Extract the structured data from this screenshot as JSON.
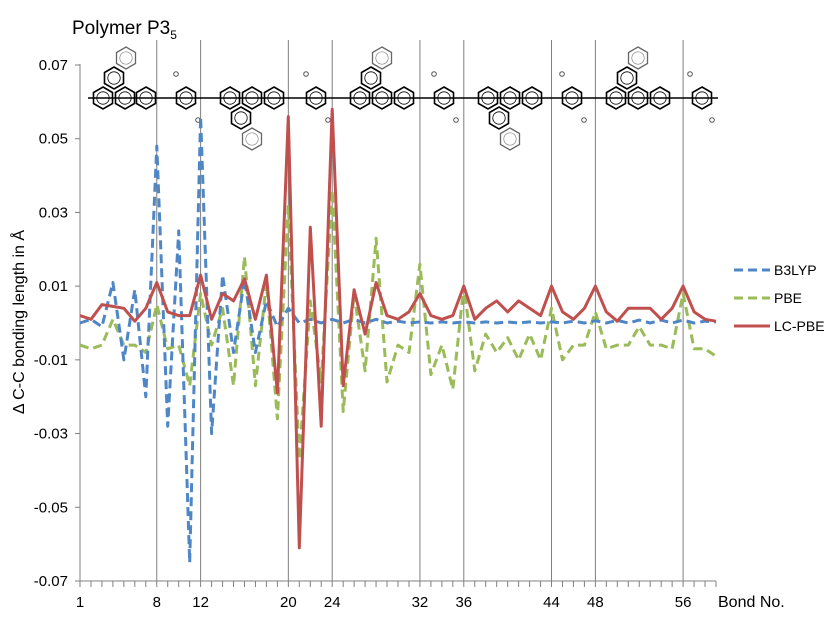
{
  "chart_data": {
    "type": "line",
    "title": "Polymer P3",
    "title_subscript": "5",
    "xlabel": "Bond No.",
    "ylabel": "Δ C-C bonding length in Å",
    "xlim": [
      1,
      59
    ],
    "ylim": [
      -0.07,
      0.07
    ],
    "y_ticks": [
      "0.07",
      "0.05",
      "0.03",
      "0.01",
      "-0.01",
      "-0.03",
      "-0.05",
      "-0.07"
    ],
    "y_tick_values": [
      0.07,
      0.05,
      0.03,
      0.01,
      -0.01,
      -0.03,
      -0.05,
      -0.07
    ],
    "x_tick_labels": [
      "1",
      "8",
      "12",
      "20",
      "24",
      "32",
      "36",
      "44",
      "48",
      "56"
    ],
    "x_tick_values": [
      1,
      8,
      12,
      20,
      24,
      32,
      36,
      44,
      48,
      56
    ],
    "vertical_reference_lines": [
      8,
      12,
      20,
      24,
      32,
      36,
      44,
      48,
      56
    ],
    "grid": false,
    "legend_position": "right",
    "x": [
      1,
      2,
      3,
      4,
      5,
      6,
      7,
      8,
      9,
      10,
      11,
      12,
      13,
      14,
      15,
      16,
      17,
      18,
      19,
      20,
      21,
      22,
      23,
      24,
      25,
      26,
      27,
      28,
      29,
      30,
      31,
      32,
      33,
      34,
      35,
      36,
      37,
      38,
      39,
      40,
      41,
      42,
      43,
      44,
      45,
      46,
      47,
      48,
      49,
      50,
      51,
      52,
      53,
      54,
      55,
      56,
      57,
      58,
      59
    ],
    "series": [
      {
        "name": "B3LYP",
        "color": "#4f86c6",
        "style": "dashed",
        "values": [
          0.0,
          0.001,
          -0.001,
          0.011,
          -0.01,
          0.009,
          -0.02,
          0.048,
          -0.028,
          0.025,
          -0.065,
          0.056,
          -0.03,
          0.013,
          -0.008,
          0.012,
          -0.008,
          0.006,
          -0.001,
          0.004,
          0.0,
          0.001,
          0.0,
          0.001,
          0.0,
          0.001,
          0.0,
          0.001,
          0.0,
          0.0005,
          0.0,
          0.0003,
          0.0,
          0.0003,
          0.0,
          0.0003,
          0.0,
          0.0003,
          0.0,
          0.0003,
          0.0,
          0.0003,
          0.0,
          0.0003,
          0.0,
          0.0005,
          0.0,
          0.0006,
          0.0,
          0.0007,
          0.0,
          0.0008,
          0.0,
          0.0008,
          0.0,
          0.0008,
          0.0,
          0.0005,
          0.0003
        ]
      },
      {
        "name": "PBE",
        "color": "#9bbb59",
        "style": "dashed",
        "values": [
          -0.006,
          -0.007,
          -0.006,
          0.001,
          -0.006,
          -0.006,
          -0.008,
          0.005,
          -0.007,
          -0.006,
          -0.017,
          0.008,
          -0.006,
          0.004,
          -0.017,
          0.018,
          -0.017,
          0.011,
          -0.026,
          0.032,
          -0.037,
          0.006,
          -0.016,
          0.036,
          -0.024,
          0.008,
          -0.013,
          0.023,
          -0.016,
          -0.006,
          -0.008,
          0.016,
          -0.014,
          -0.006,
          -0.018,
          0.01,
          -0.013,
          -0.003,
          -0.008,
          -0.004,
          -0.01,
          -0.003,
          -0.01,
          0.004,
          -0.01,
          -0.006,
          -0.006,
          0.003,
          -0.007,
          -0.006,
          -0.006,
          -0.001,
          -0.006,
          -0.006,
          -0.007,
          0.008,
          -0.007,
          -0.007,
          -0.009
        ]
      },
      {
        "name": "LC-PBE",
        "color": "#c0504d",
        "style": "solid",
        "values": [
          0.002,
          0.001,
          0.005,
          0.0045,
          0.004,
          0.0005,
          0.004,
          0.011,
          0.003,
          0.002,
          0.002,
          0.013,
          0.001,
          0.008,
          0.006,
          0.012,
          0.001,
          0.013,
          -0.019,
          0.056,
          -0.061,
          0.026,
          -0.028,
          0.058,
          -0.017,
          0.009,
          -0.003,
          0.011,
          0.002,
          0.001,
          0.003,
          0.008,
          0.002,
          0.001,
          0.002,
          0.01,
          0.001,
          0.004,
          0.006,
          0.003,
          0.006,
          0.004,
          0.002,
          0.01,
          0.003,
          0.001,
          0.004,
          0.01,
          0.003,
          0.0005,
          0.004,
          0.004,
          0.004,
          0.001,
          0.004,
          0.01,
          0.003,
          0.001,
          0.0005
        ]
      }
    ]
  }
}
